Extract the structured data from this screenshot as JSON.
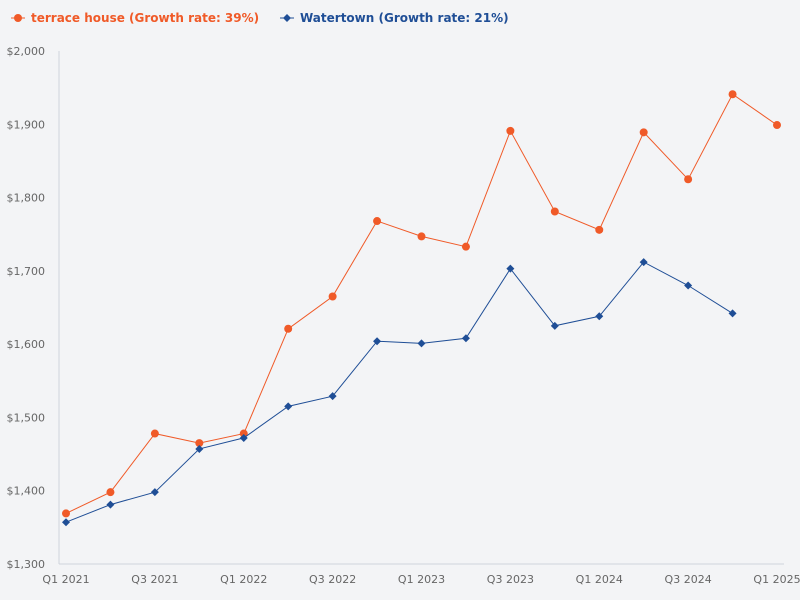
{
  "chart_data": {
    "type": "line",
    "title": "",
    "xlabel": "",
    "ylabel": "",
    "x": [
      "Q1 2021",
      "Q2 2021",
      "Q3 2021",
      "Q4 2021",
      "Q1 2022",
      "Q2 2022",
      "Q3 2022",
      "Q4 2022",
      "Q1 2023",
      "Q2 2023",
      "Q3 2023",
      "Q4 2023",
      "Q1 2024",
      "Q2 2024",
      "Q3 2024",
      "Q4 2024",
      "Q1 2025"
    ],
    "x_tick_labels": [
      "Q1 2021",
      "Q3 2021",
      "Q1 2022",
      "Q3 2022",
      "Q1 2023",
      "Q3 2023",
      "Q1 2024",
      "Q3 2024",
      "Q1 2025"
    ],
    "ylim": [
      1300,
      2000
    ],
    "y_ticks": [
      1300,
      1400,
      1500,
      1600,
      1700,
      1800,
      1900,
      2000
    ],
    "y_tick_labels": [
      "$1,300",
      "$1,400",
      "$1,500",
      "$1,600",
      "$1,700",
      "$1,800",
      "$1,900",
      "$2,000"
    ],
    "grid": false,
    "legend_position": "top-left",
    "series": [
      {
        "name": "terrace house (Growth rate: 39%)",
        "color": "#f05a28",
        "marker": "circle",
        "values": [
          1369,
          1398,
          1478,
          1465,
          1478,
          1621,
          1665,
          1768,
          1747,
          1733,
          1891,
          1781,
          1756,
          1889,
          1825,
          1941,
          1899
        ]
      },
      {
        "name": "Watertown (Growth rate: 21%)",
        "color": "#1f4e96",
        "marker": "diamond",
        "values": [
          1357,
          1381,
          1398,
          1457,
          1472,
          1515,
          1529,
          1604,
          1601,
          1608,
          1703,
          1625,
          1638,
          1712,
          1680,
          1642,
          null
        ]
      }
    ]
  }
}
